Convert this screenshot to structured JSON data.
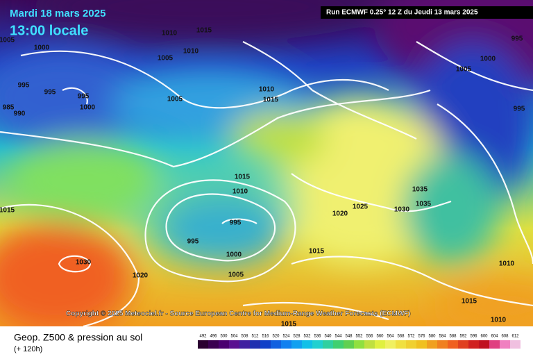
{
  "header": {
    "date": "Mardi 18 mars 2025",
    "time": "13:00 locale",
    "run": "Run ECMWF 0.25° 12 Z du Jeudi 13 mars 2025"
  },
  "copyright": "Copyright © 2025 Meteociel.fr - Source European Centre for Medium-Range Weather Forecasts (ECMWF)",
  "footer": {
    "title": "Geop. Z500 & pression au sol",
    "lead": "(+ 120h)"
  },
  "isobar_labels": [
    "1010",
    "1015",
    "1010",
    "1005",
    "1000",
    "1005",
    "995",
    "995",
    "995",
    "1000",
    "985",
    "990",
    "1005",
    "1010",
    "1015",
    "1015",
    "1010",
    "995",
    "995",
    "1000",
    "1005",
    "1030",
    "1020",
    "1015",
    "1015",
    "1020",
    "1025",
    "1030",
    "1035",
    "1035",
    "995",
    "1005",
    "1000",
    "995",
    "1010",
    "1015",
    "1010",
    "1015"
  ],
  "scale": [
    492,
    496,
    500,
    504,
    508,
    512,
    516,
    520,
    524,
    528,
    532,
    536,
    540,
    544,
    548,
    552,
    556,
    560,
    564,
    568,
    572,
    576,
    580,
    584,
    588,
    592,
    596,
    600,
    604,
    608,
    612
  ]
}
